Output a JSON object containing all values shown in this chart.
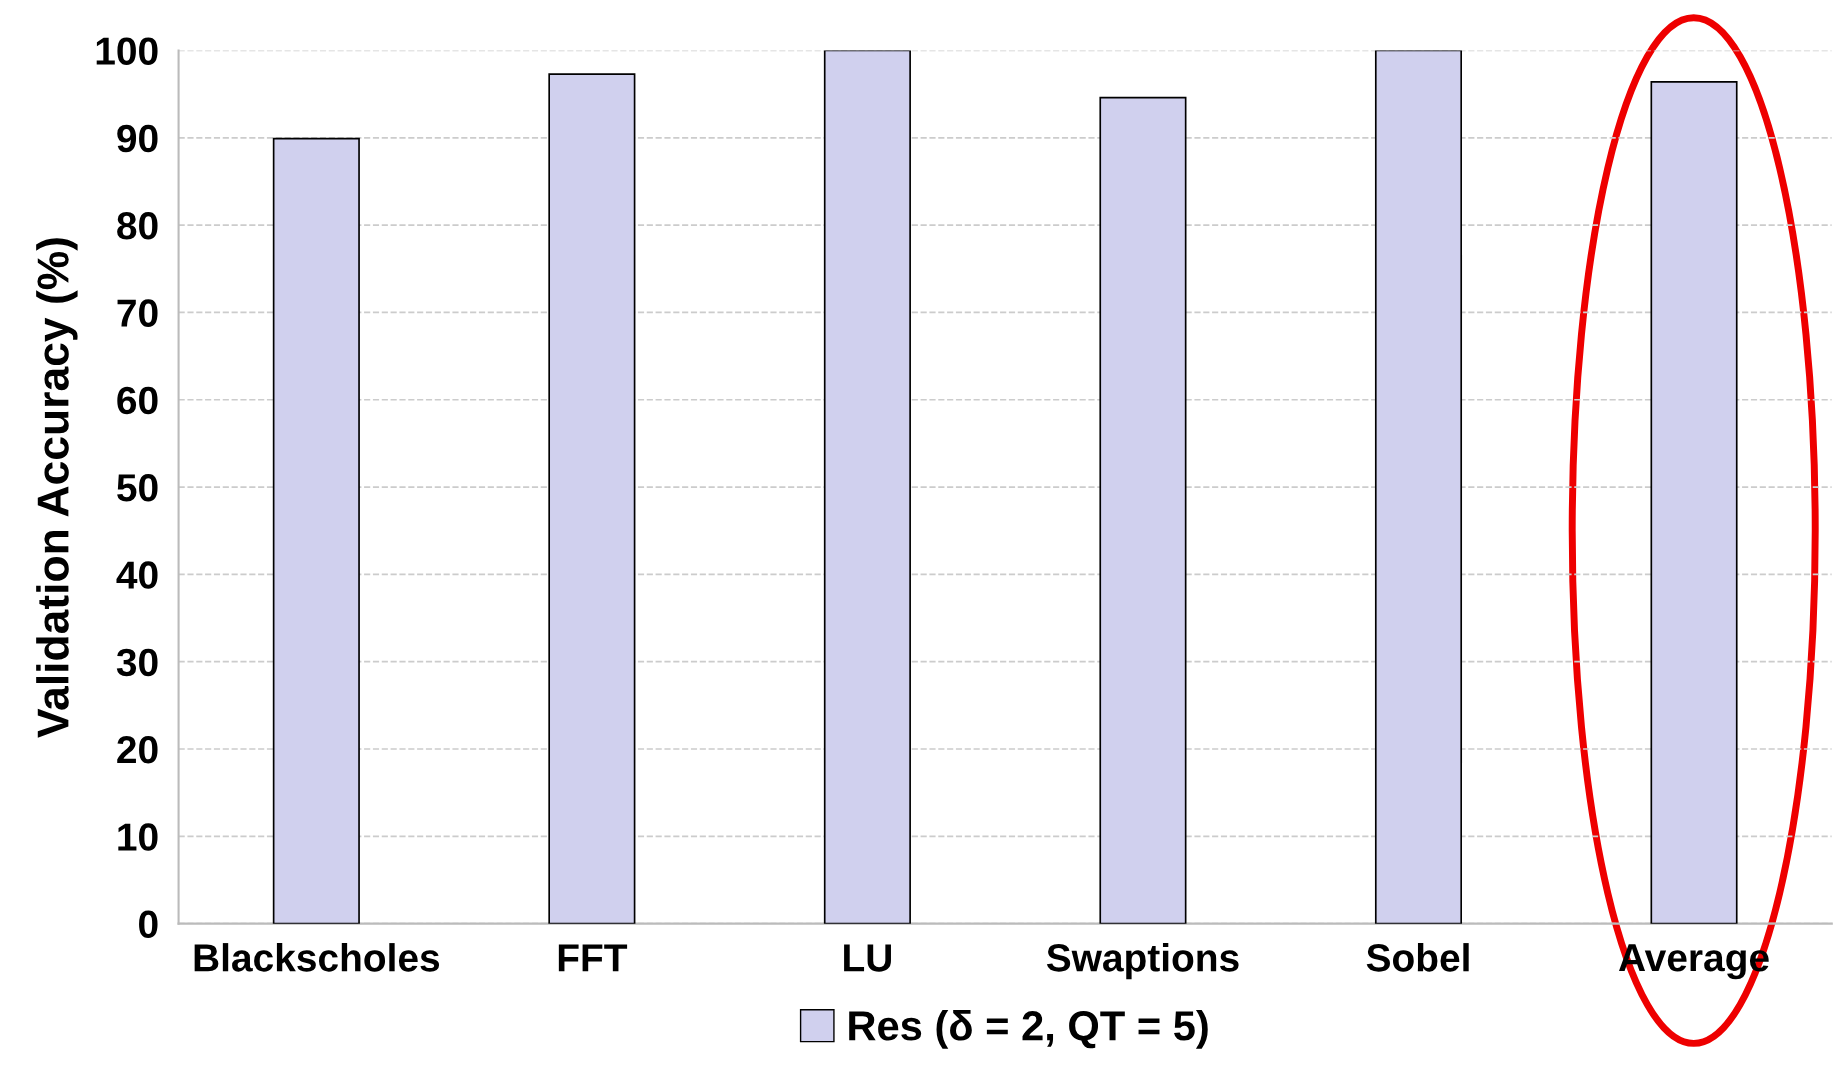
{
  "chart_data": {
    "type": "bar",
    "ylabel": "Validation Accuracy (%)",
    "categories": [
      "Blackscholes",
      "FFT",
      "LU",
      "Swaptions",
      "Sobel",
      "Average"
    ],
    "series": [
      {
        "name": "Res (δ = 2, QT = 5)",
        "color": "#d0d0ee",
        "values": [
          89.9,
          97.3,
          100,
          94.6,
          100,
          96.4
        ]
      }
    ],
    "ylim": [
      0,
      100
    ],
    "yticks": [
      0,
      10,
      20,
      30,
      40,
      50,
      60,
      70,
      80,
      90,
      100
    ],
    "grid": "y",
    "legend": "bottom"
  }
}
